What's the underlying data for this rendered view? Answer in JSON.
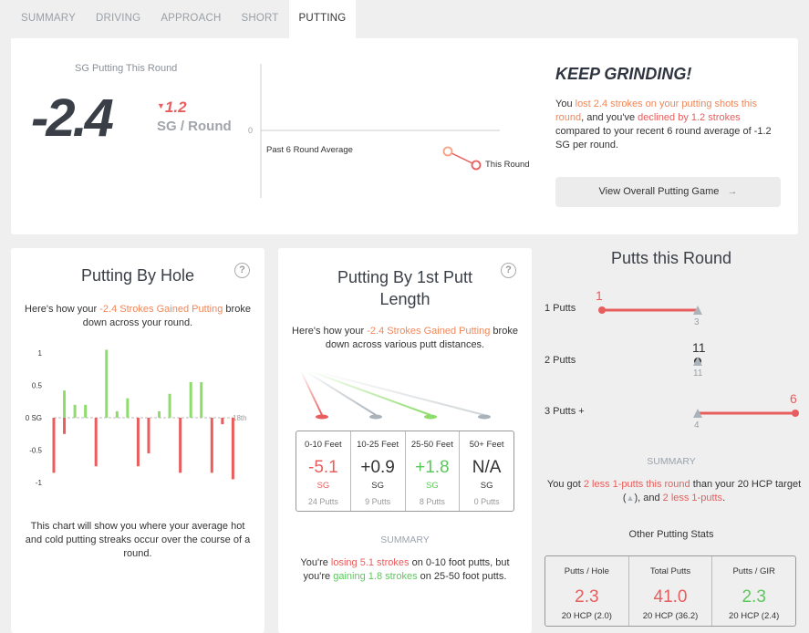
{
  "tabs": [
    "SUMMARY",
    "DRIVING",
    "APPROACH",
    "SHORT",
    "PUTTING"
  ],
  "active_tab": 4,
  "top": {
    "sg_label": "SG Putting This Round",
    "sg_value": "-2.4",
    "delta": "1.2",
    "unit": "SG / Round",
    "zero_label": "0",
    "avg_label": "Past 6 Round Average",
    "this_label": "This Round",
    "avg_value": -1.2,
    "this_value": -2.4,
    "headline": "KEEP GRINDING!",
    "msg1": "You ",
    "msg2": "lost 2.4 strokes on your putting shots this round",
    "msg3": ", and you've ",
    "msg4": "declined by 1.2 strokes",
    "msg5": " compared to your recent 6 round average of -1.2 SG per round.",
    "button": "View Overall Putting Game",
    "arrow": "→"
  },
  "by_hole": {
    "title": "Putting By Hole",
    "help": "?",
    "intro1": "Here's how your ",
    "intro_hl": "-2.4 Strokes Gained Putting",
    "intro2": " broke down across your round.",
    "footer": "This chart will show you where your average hot and cold putting streaks occur over the course of a round.",
    "colors": {
      "positive": "#8ddc6c",
      "negative": "#e85d5d"
    }
  },
  "by_length": {
    "title": "Putting By 1st Putt Length",
    "help": "?",
    "intro1": "Here's how your ",
    "intro_hl": "-2.4 Strokes Gained Putting",
    "intro2": " broke down across various putt distances.",
    "columns": [
      {
        "head": "0-10 Feet",
        "value": "-5.1",
        "sg": "SG",
        "putts": "24 Putts",
        "color": "red"
      },
      {
        "head": "10-25 Feet",
        "value": "+0.9",
        "sg": "SG",
        "putts": "9 Putts",
        "color": "dark"
      },
      {
        "head": "25-50 Feet",
        "value": "+1.8",
        "sg": "SG",
        "putts": "8 Putts",
        "color": "green"
      },
      {
        "head": "50+ Feet",
        "value": "N/A",
        "sg": "SG",
        "putts": "0 Putts",
        "color": "dark"
      }
    ],
    "summary_label": "SUMMARY",
    "s1": "You're ",
    "s2": "losing 5.1 strokes",
    "s3": " on 0-10 foot putts, but you're ",
    "s4": "gaining 1.8 strokes",
    "s5": " on 25-50 foot putts."
  },
  "putts_round": {
    "title": "Putts this Round",
    "rows": [
      {
        "label": "1 Putts",
        "value": "1",
        "target": "3"
      },
      {
        "label": "2 Putts",
        "value": "11",
        "target": "11"
      },
      {
        "label": "3 Putts +",
        "value": "6",
        "target": "4"
      }
    ],
    "summary_label": "SUMMARY",
    "s1": "You got ",
    "s2": "2 less 1-putts this round",
    "s3": " than your 20 HCP target (",
    "s4": "), and ",
    "s5": "2 less 1-putts",
    "s6": ".",
    "other_title": "Other Putting Stats",
    "stats": [
      {
        "head": "Putts / Hole",
        "value": "2.3",
        "cmp": "20 HCP (2.0)"
      },
      {
        "head": "Total Putts",
        "value": "41.0",
        "cmp": "20 HCP (36.2)"
      },
      {
        "head": "Putts / GIR",
        "value": "2.3",
        "cmp": "20 HCP (2.4)"
      }
    ]
  },
  "chart_data": {
    "type": "bar",
    "title": "Putting By Hole",
    "yticks": [
      "1",
      "0.5",
      "0 SG",
      "-0.5",
      "-1"
    ],
    "xlabel_end": "18th",
    "ylim": [
      -1.05,
      1.05
    ],
    "categories": [
      "1",
      "2",
      "3",
      "4",
      "5",
      "6",
      "7",
      "8",
      "9",
      "10",
      "11",
      "12",
      "13",
      "14",
      "15",
      "16",
      "17",
      "18"
    ],
    "series": [
      {
        "values": [
          -0.85,
          0.42,
          0.2,
          0.2,
          -0.75,
          1.05,
          0.1,
          0.3,
          -0.75,
          -0.55,
          0.1,
          0.37,
          -0.85,
          0.55,
          0.55,
          -0.85,
          -0.1,
          -0.95
        ]
      },
      {
        "values": [
          0,
          -0.25,
          0,
          0,
          0,
          0,
          0,
          0,
          0,
          0,
          0,
          0,
          0,
          0,
          0,
          0,
          0,
          0
        ]
      }
    ]
  }
}
